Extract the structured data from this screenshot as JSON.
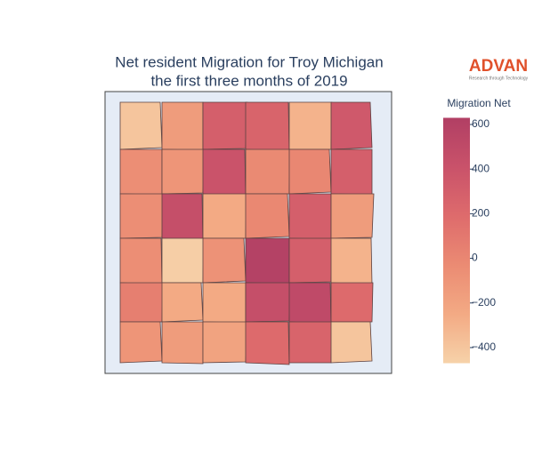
{
  "chart_data": {
    "type": "choropleth",
    "title": [
      "Net resident Migration for Troy Michigan",
      "the first three months of 2019"
    ],
    "logo": {
      "name": "ADVAN",
      "tagline": "Research through Technology"
    },
    "colorbar_title": "Migration Net",
    "colorscale": [
      "#f6d2a9",
      "#f3aa84",
      "#eb8b73",
      "#de6b6c",
      "#c9526a",
      "#b13f64"
    ],
    "clim": [
      -470,
      630
    ],
    "cticks": [
      {
        "value": -400,
        "label": "−400"
      },
      {
        "value": -200,
        "label": "−200"
      },
      0,
      200,
      400,
      600
    ],
    "values": [
      -400,
      -150,
      300,
      250,
      -300,
      350,
      -50,
      -100,
      400,
      -20,
      0,
      300,
      -50,
      450,
      -250,
      -10,
      300,
      -150,
      -50,
      -450,
      -80,
      600,
      300,
      -300,
      50,
      -250,
      -250,
      450,
      500,
      200,
      -100,
      -150,
      -200,
      200,
      250,
      -400
    ]
  }
}
